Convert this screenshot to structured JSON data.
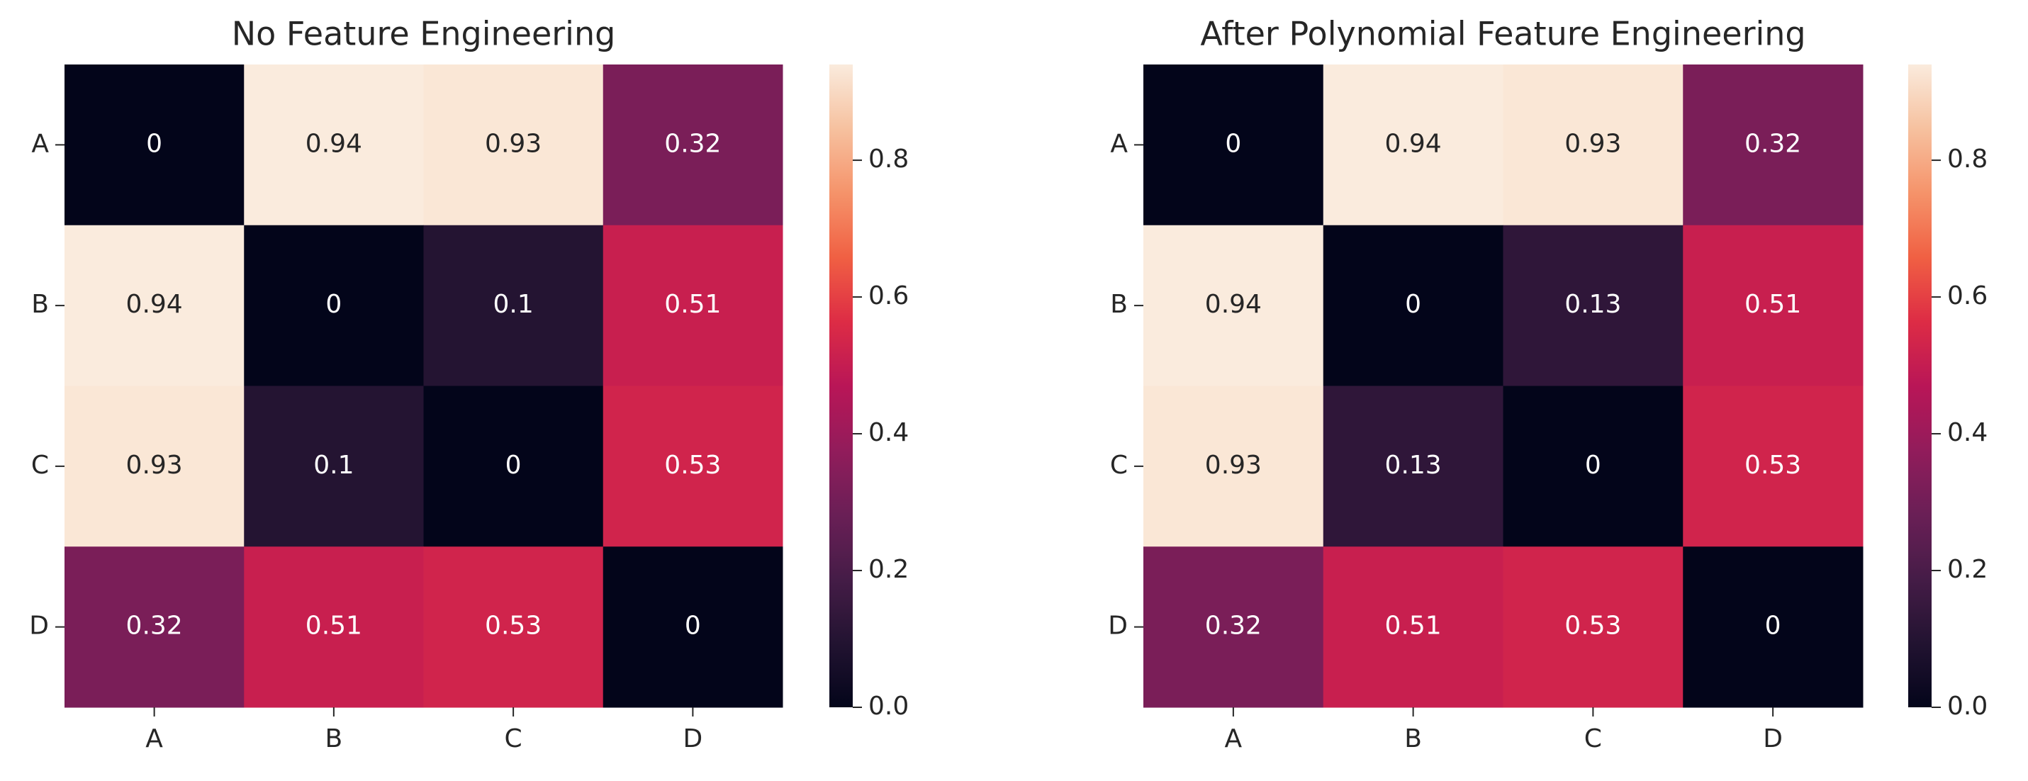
{
  "chart_data": [
    {
      "type": "heatmap",
      "title": "No Feature Engineering",
      "x_categories": [
        "A",
        "B",
        "C",
        "D"
      ],
      "y_categories": [
        "A",
        "B",
        "C",
        "D"
      ],
      "values": [
        [
          0,
          0.94,
          0.93,
          0.32
        ],
        [
          0.94,
          0,
          0.1,
          0.51
        ],
        [
          0.93,
          0.1,
          0,
          0.53
        ],
        [
          0.32,
          0.51,
          0.53,
          0
        ]
      ],
      "colormap": "rocket",
      "zlim": [
        0,
        0.94
      ],
      "zticks": [
        {
          "value": 0,
          "label": "0.0"
        },
        0.2,
        0.4,
        0.6,
        0.8
      ]
    },
    {
      "type": "heatmap",
      "title": "After Polynomial Feature Engineering",
      "x_categories": [
        "A",
        "B",
        "C",
        "D"
      ],
      "y_categories": [
        "A",
        "B",
        "C",
        "D"
      ],
      "values": [
        [
          0,
          0.94,
          0.93,
          0.32
        ],
        [
          0.94,
          0,
          0.13,
          0.51
        ],
        [
          0.93,
          0.13,
          0,
          0.53
        ],
        [
          0.32,
          0.51,
          0.53,
          0
        ]
      ],
      "colormap": "rocket",
      "zlim": [
        0,
        0.94
      ],
      "zticks": [
        {
          "value": 0,
          "label": "0.0"
        },
        0.2,
        0.4,
        0.6,
        0.8
      ]
    }
  ]
}
